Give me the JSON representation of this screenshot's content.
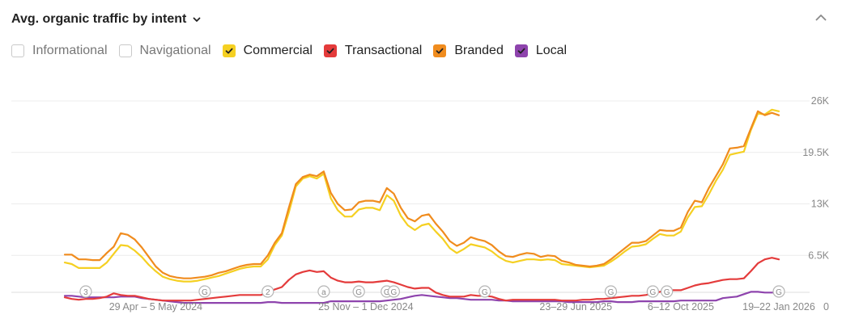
{
  "header": {
    "title": "Avg. organic traffic by intent"
  },
  "colors": {
    "informational": "#c9c9c9",
    "navigational": "#c9c9c9",
    "commercial": "#f5d022",
    "transactional": "#e43b3b",
    "branded": "#f08c1e",
    "local": "#8e44ad",
    "grid": "#ececec"
  },
  "legend": [
    {
      "label": "Informational",
      "checked": false,
      "color": "#c9c9c9"
    },
    {
      "label": "Navigational",
      "checked": false,
      "color": "#c9c9c9"
    },
    {
      "label": "Commercial",
      "checked": true,
      "color": "#f5d022"
    },
    {
      "label": "Transactional",
      "checked": true,
      "color": "#e43b3b"
    },
    {
      "label": "Branded",
      "checked": true,
      "color": "#f08c1e"
    },
    {
      "label": "Local",
      "checked": true,
      "color": "#8e44ad"
    }
  ],
  "chart_data": {
    "type": "line",
    "title": "Avg. organic traffic by intent",
    "ylim": [
      0,
      26000
    ],
    "y_ticks": [
      {
        "label": "26K",
        "value": 26000
      },
      {
        "label": "19.5K",
        "value": 19500
      },
      {
        "label": "13K",
        "value": 13000
      },
      {
        "label": "6.5K",
        "value": 6500
      },
      {
        "label": "0",
        "value": 0
      }
    ],
    "x_labels": [
      {
        "label": "29 Apr – 5 May 2024",
        "index": 13
      },
      {
        "label": "25 Nov – 1 Dec 2024",
        "index": 43
      },
      {
        "label": "23–29 Jun 2025",
        "index": 73
      },
      {
        "label": "6–12 Oct 2025",
        "index": 88
      },
      {
        "label": "19–22 Jan 2026",
        "index": 102
      }
    ],
    "markers": [
      {
        "label": "3",
        "index": 3
      },
      {
        "label": "G",
        "index": 20
      },
      {
        "label": "2",
        "index": 29
      },
      {
        "label": "a",
        "index": 37
      },
      {
        "label": "G",
        "index": 42
      },
      {
        "label": "G",
        "index": 46
      },
      {
        "label": "G",
        "index": 47
      },
      {
        "label": "G",
        "index": 60
      },
      {
        "label": "G",
        "index": 78
      },
      {
        "label": "G",
        "index": 84
      },
      {
        "label": "G",
        "index": 86
      },
      {
        "label": "G",
        "index": 102
      }
    ],
    "grid": true,
    "legend_position": "top-left",
    "series": [
      {
        "name": "Branded",
        "color": "#f08c1e",
        "values": [
          6600,
          6600,
          6000,
          6000,
          5900,
          5900,
          6800,
          7600,
          9300,
          9100,
          8500,
          7500,
          6300,
          5100,
          4300,
          3900,
          3700,
          3600,
          3600,
          3700,
          3800,
          4000,
          4300,
          4500,
          4800,
          5100,
          5300,
          5400,
          5400,
          6500,
          8100,
          9300,
          12500,
          15500,
          16400,
          16700,
          16500,
          17100,
          14400,
          13000,
          12200,
          12300,
          13200,
          13400,
          13400,
          13200,
          15000,
          14300,
          12500,
          11200,
          10800,
          11500,
          11700,
          10500,
          9500,
          8300,
          7700,
          8100,
          8800,
          8500,
          8300,
          7800,
          7000,
          6400,
          6300,
          6600,
          6800,
          6700,
          6300,
          6500,
          6400,
          5800,
          5600,
          5300,
          5200,
          5100,
          5200,
          5400,
          6000,
          6700,
          7400,
          8100,
          8100,
          8300,
          9000,
          9700,
          9600,
          9600,
          10000,
          12000,
          13400,
          13200,
          15000,
          16500,
          18000,
          20000,
          20100,
          20300,
          22500,
          24700,
          24200,
          24500,
          24200
        ]
      },
      {
        "name": "Commercial",
        "color": "#f5d022",
        "values": [
          5600,
          5400,
          4900,
          4900,
          4900,
          4900,
          5600,
          6700,
          7800,
          7700,
          7100,
          6300,
          5300,
          4500,
          3800,
          3500,
          3300,
          3200,
          3200,
          3300,
          3500,
          3700,
          3900,
          4200,
          4500,
          4800,
          5000,
          5100,
          5100,
          6000,
          7800,
          9000,
          11900,
          15200,
          16200,
          16500,
          16200,
          16800,
          13700,
          12200,
          11400,
          11400,
          12300,
          12500,
          12500,
          12200,
          14100,
          13400,
          11500,
          10300,
          9700,
          10300,
          10500,
          9500,
          8600,
          7400,
          6800,
          7300,
          7900,
          7700,
          7500,
          7000,
          6300,
          5800,
          5600,
          5800,
          6000,
          6000,
          5900,
          6000,
          5900,
          5400,
          5300,
          5200,
          5100,
          5000,
          5100,
          5200,
          5700,
          6300,
          7000,
          7600,
          7700,
          7900,
          8600,
          9200,
          9000,
          9000,
          9500,
          11300,
          12600,
          12700,
          14200,
          15900,
          17300,
          19200,
          19400,
          19600,
          22300,
          24400,
          24300,
          24900,
          24700
        ]
      },
      {
        "name": "Transactional",
        "color": "#e43b3b",
        "values": [
          1200,
          1000,
          900,
          1000,
          1000,
          1100,
          1300,
          1700,
          1500,
          1400,
          1400,
          1200,
          1000,
          900,
          800,
          800,
          800,
          800,
          800,
          900,
          1000,
          1100,
          1200,
          1300,
          1400,
          1500,
          1500,
          1500,
          1500,
          1800,
          2200,
          2500,
          3400,
          4100,
          4400,
          4600,
          4400,
          4500,
          3700,
          3300,
          3100,
          3100,
          3200,
          3100,
          3100,
          3200,
          3300,
          3100,
          2800,
          2500,
          2300,
          2400,
          2400,
          1800,
          1500,
          1300,
          1300,
          1300,
          1500,
          1400,
          1400,
          1300,
          1000,
          800,
          900,
          900,
          900,
          900,
          900,
          900,
          900,
          800,
          800,
          800,
          900,
          900,
          1000,
          1000,
          1100,
          1200,
          1300,
          1400,
          1400,
          1500,
          1700,
          1900,
          2100,
          2100,
          2100,
          2400,
          2700,
          2900,
          3000,
          3200,
          3400,
          3500,
          3500,
          3600,
          4500,
          5500,
          6000,
          6200,
          6000
        ]
      },
      {
        "name": "Local",
        "color": "#8e44ad",
        "values": [
          1400,
          1400,
          1300,
          1200,
          1200,
          1200,
          1200,
          1200,
          1300,
          1300,
          1300,
          1100,
          1000,
          900,
          800,
          700,
          600,
          500,
          500,
          500,
          500,
          500,
          500,
          500,
          500,
          500,
          500,
          500,
          500,
          600,
          600,
          500,
          500,
          500,
          500,
          500,
          500,
          500,
          700,
          700,
          700,
          700,
          700,
          700,
          700,
          700,
          800,
          900,
          1000,
          1200,
          1400,
          1500,
          1400,
          1300,
          1200,
          1100,
          1100,
          1000,
          900,
          900,
          900,
          900,
          800,
          800,
          700,
          700,
          700,
          700,
          700,
          700,
          700,
          700,
          600,
          600,
          600,
          600,
          600,
          700,
          700,
          600,
          600,
          600,
          700,
          700,
          700,
          700,
          700,
          700,
          800,
          800,
          800,
          800,
          800,
          800,
          1100,
          1200,
          1300,
          1600,
          1900,
          1900,
          1800,
          1800,
          1800
        ]
      }
    ]
  }
}
